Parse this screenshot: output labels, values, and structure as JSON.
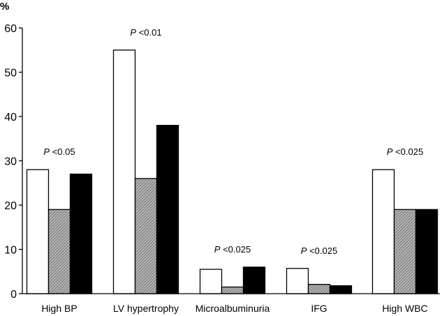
{
  "chart_data": {
    "type": "bar",
    "title": "",
    "xlabel": "",
    "ylabel": "%",
    "ylim": [
      0,
      60
    ],
    "yticks": [
      "0",
      "10",
      "20",
      "30",
      "40",
      "50",
      "60"
    ],
    "grid": false,
    "legend": "none",
    "categories": [
      "High BP",
      "LV hypertrophy",
      "Microalbuminuria",
      "IFG",
      "High WBC"
    ],
    "series": [
      {
        "fill": "white",
        "color": "#ffffff",
        "values": [
          28,
          55,
          5.5,
          5.7,
          28
        ]
      },
      {
        "fill": "hatched-gray",
        "color": "#8c8c8c",
        "values": [
          19,
          26,
          1.5,
          2.1,
          19
        ]
      },
      {
        "fill": "black",
        "color": "#000000",
        "values": [
          27,
          38,
          6,
          1.8,
          19
        ]
      }
    ],
    "annotations": [
      {
        "category": "High BP",
        "p": "P",
        "text": " <0.05"
      },
      {
        "category": "LV hypertrophy",
        "p": "P",
        "text": " <0.01"
      },
      {
        "category": "Microalbuminuria",
        "p": "P",
        "text": " <0.025"
      },
      {
        "category": "IFG",
        "p": "P",
        "text": " <0.025"
      },
      {
        "category": "High WBC",
        "p": "P",
        "text": " <0.025"
      }
    ]
  }
}
